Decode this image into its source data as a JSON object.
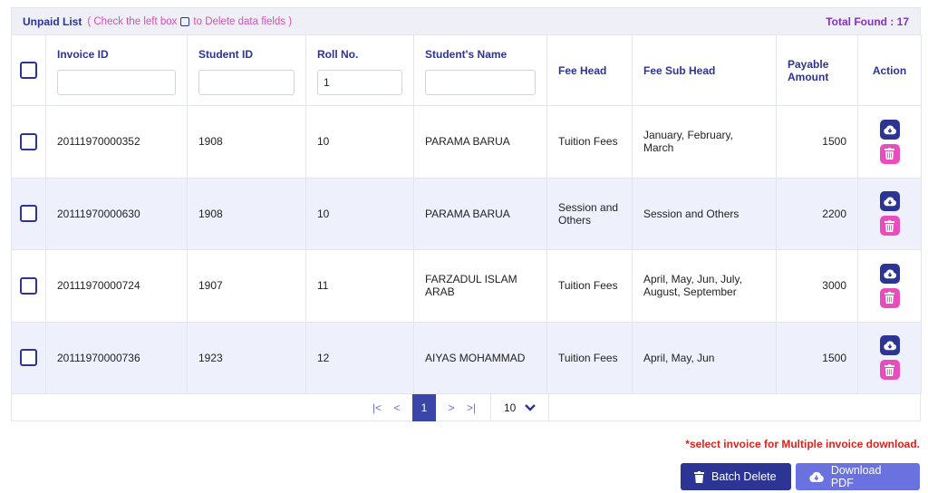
{
  "header": {
    "title": "Unpaid List",
    "hint_pre": "( Check the left box",
    "hint_post": "to Delete data fields )",
    "total": "Total Found : 17"
  },
  "columns": {
    "invoice_id": "Invoice ID",
    "student_id": "Student ID",
    "roll_no": "Roll No.",
    "student_name": "Student's Name",
    "fee_head": "Fee Head",
    "fee_sub_head": "Fee Sub Head",
    "payable_amount": "Payable Amount",
    "action": "Action"
  },
  "filters": {
    "invoice_id": "",
    "student_id": "",
    "roll_no": "1",
    "student_name": ""
  },
  "rows": [
    {
      "invoice_id": "20111970000352",
      "student_id": "1908",
      "roll_no": "10",
      "student_name": "PARAMA BARUA",
      "fee_head": "Tuition Fees",
      "fee_sub_head": "January, February, March",
      "amount": "1500"
    },
    {
      "invoice_id": "20111970000630",
      "student_id": "1908",
      "roll_no": "10",
      "student_name": "PARAMA BARUA",
      "fee_head": "Session and Others",
      "fee_sub_head": "Session and Others",
      "amount": "2200"
    },
    {
      "invoice_id": "20111970000724",
      "student_id": "1907",
      "roll_no": "11",
      "student_name": "FARZADUL ISLAM ARAB",
      "fee_head": "Tuition Fees",
      "fee_sub_head": "April, May, Jun, July, August, September",
      "amount": "3000"
    },
    {
      "invoice_id": "20111970000736",
      "student_id": "1923",
      "roll_no": "12",
      "student_name": "AIYAS MOHAMMAD",
      "fee_head": "Tuition Fees",
      "fee_sub_head": "April, May, Jun",
      "amount": "1500"
    }
  ],
  "pager": {
    "first": "|<",
    "prev": "<",
    "current": "1",
    "next": ">",
    "last": ">|",
    "page_size": "10"
  },
  "note": "*select invoice for Multiple invoice download.",
  "buttons": {
    "batch_delete": "Batch Delete",
    "download_pdf": "Download PDF"
  },
  "colors": {
    "primary": "#2c3494",
    "pink": "#e94dbd",
    "row_alt": "#eef0fb",
    "note": "#e0201b"
  }
}
